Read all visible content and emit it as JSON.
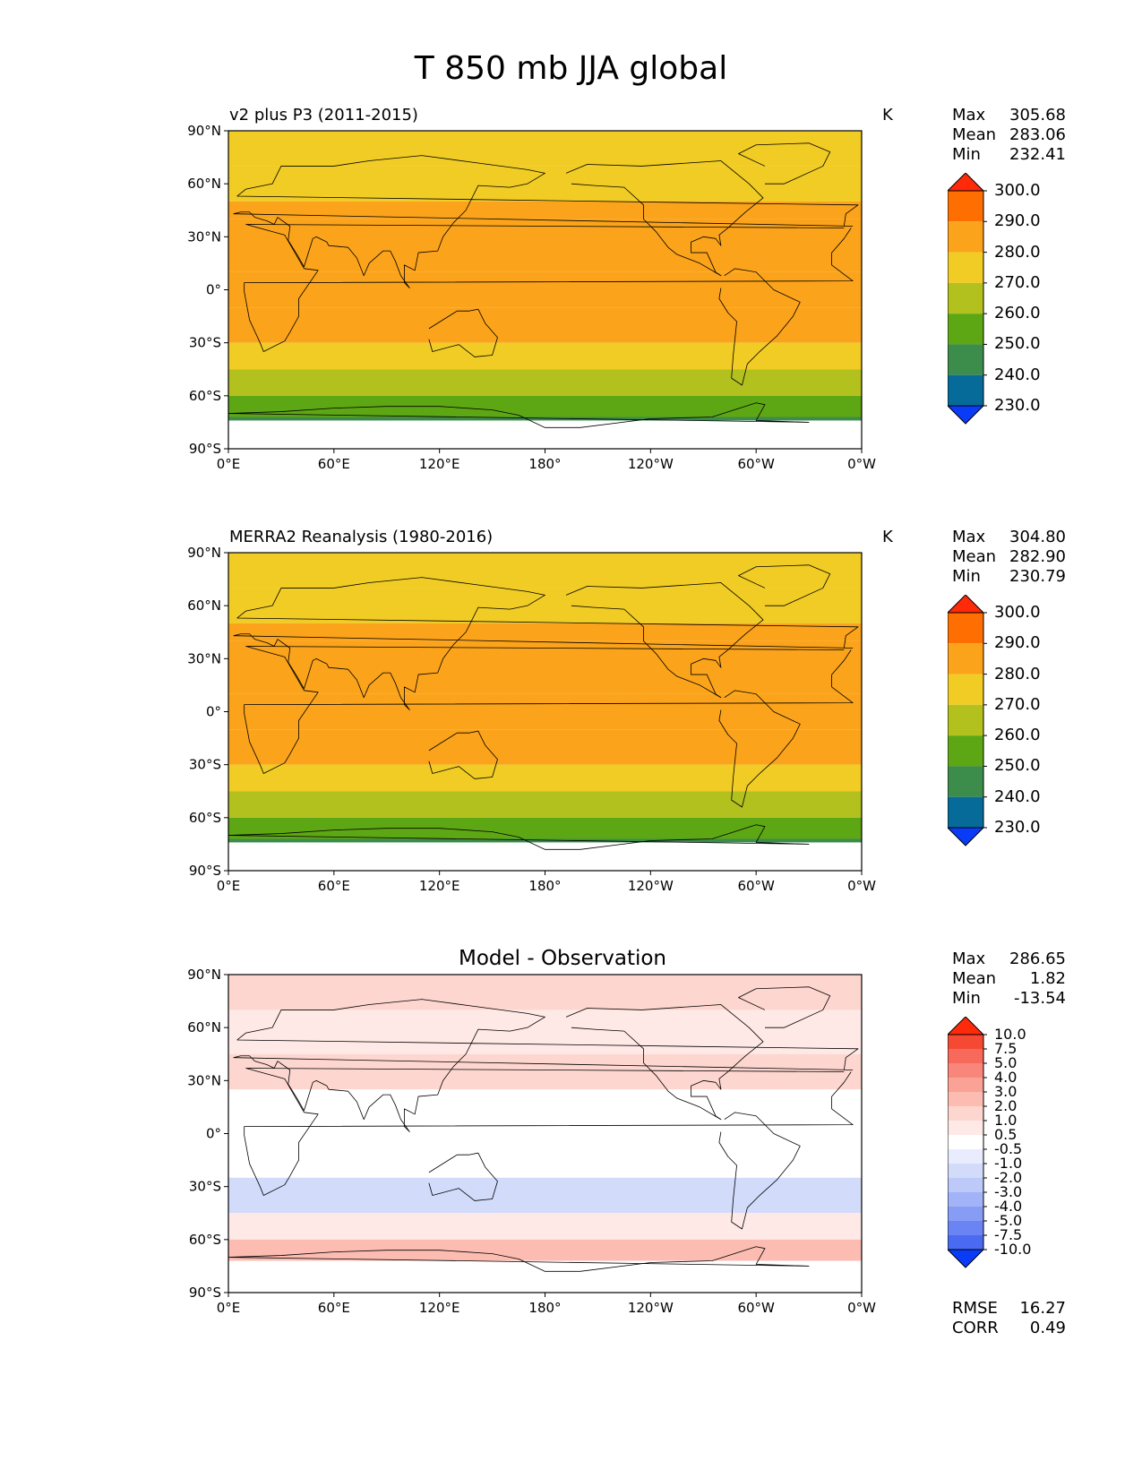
{
  "figure_title": "T 850 mb JJA global",
  "chart_data": [
    {
      "type": "heatmap",
      "title": "v2 plus P3 (2011-2015)",
      "units": "K",
      "stats": {
        "Max": "305.68",
        "Mean": "283.06",
        "Min": "232.41"
      },
      "xlabel": "",
      "ylabel": "",
      "x_ticks": [
        "0°E",
        "60°E",
        "120°E",
        "180°",
        "120°W",
        "60°W",
        "0°W"
      ],
      "y_ticks": [
        "90°N",
        "60°N",
        "30°N",
        "0°",
        "30°S",
        "60°S",
        "90°S"
      ],
      "xlim": [
        0,
        360
      ],
      "ylim": [
        -90,
        90
      ],
      "colorbar": {
        "levels": [
          "300.0",
          "290.0",
          "280.0",
          "270.0",
          "260.0",
          "250.0",
          "240.0",
          "230.0"
        ],
        "colors": [
          "#ff2a0a",
          "#ff6e00",
          "#fba31a",
          "#f1cc25",
          "#b3c11f",
          "#5ea714",
          "#3c8c4c",
          "#076b9a",
          "#0a3cf8"
        ]
      },
      "latitude_bands_K": [
        {
          "lat": [
            70,
            90
          ],
          "value": 270
        },
        {
          "lat": [
            50,
            70
          ],
          "value": 275
        },
        {
          "lat": [
            40,
            50
          ],
          "value": 283
        },
        {
          "lat": [
            10,
            40
          ],
          "value": 288
        },
        {
          "lat": [
            -10,
            10
          ],
          "value": 287
        },
        {
          "lat": [
            -30,
            -10
          ],
          "value": 282
        },
        {
          "lat": [
            -45,
            -30
          ],
          "value": 272
        },
        {
          "lat": [
            -60,
            -45
          ],
          "value": 262
        },
        {
          "lat": [
            -72,
            -60
          ],
          "value": 255
        },
        {
          "lat": [
            -90,
            -72
          ],
          "value": 240
        }
      ]
    },
    {
      "type": "heatmap",
      "title": "MERRA2 Reanalysis (1980-2016)",
      "units": "K",
      "stats": {
        "Max": "304.80",
        "Mean": "282.90",
        "Min": "230.79"
      },
      "xlabel": "",
      "ylabel": "",
      "x_ticks": [
        "0°E",
        "60°E",
        "120°E",
        "180°",
        "120°W",
        "60°W",
        "0°W"
      ],
      "y_ticks": [
        "90°N",
        "60°N",
        "30°N",
        "0°",
        "30°S",
        "60°S",
        "90°S"
      ],
      "xlim": [
        0,
        360
      ],
      "ylim": [
        -90,
        90
      ],
      "colorbar": {
        "levels": [
          "300.0",
          "290.0",
          "280.0",
          "270.0",
          "260.0",
          "250.0",
          "240.0",
          "230.0"
        ],
        "colors": [
          "#ff2a0a",
          "#ff6e00",
          "#fba31a",
          "#f1cc25",
          "#b3c11f",
          "#5ea714",
          "#3c8c4c",
          "#076b9a",
          "#0a3cf8"
        ]
      },
      "latitude_bands_K": [
        {
          "lat": [
            70,
            90
          ],
          "value": 270
        },
        {
          "lat": [
            50,
            70
          ],
          "value": 276
        },
        {
          "lat": [
            40,
            50
          ],
          "value": 283
        },
        {
          "lat": [
            10,
            40
          ],
          "value": 288
        },
        {
          "lat": [
            -10,
            10
          ],
          "value": 287
        },
        {
          "lat": [
            -30,
            -10
          ],
          "value": 282
        },
        {
          "lat": [
            -45,
            -30
          ],
          "value": 272
        },
        {
          "lat": [
            -60,
            -45
          ],
          "value": 262
        },
        {
          "lat": [
            -72,
            -60
          ],
          "value": 255
        },
        {
          "lat": [
            -90,
            -72
          ],
          "value": 240
        }
      ]
    },
    {
      "type": "heatmap",
      "title": "Model - Observation",
      "units": "",
      "stats": {
        "Max": "286.65",
        "Mean": "1.82",
        "Min": "-13.54"
      },
      "metrics": {
        "RMSE": "16.27",
        "CORR": "0.49"
      },
      "xlabel": "",
      "ylabel": "",
      "x_ticks": [
        "0°E",
        "60°E",
        "120°E",
        "180°",
        "120°W",
        "60°W",
        "0°W"
      ],
      "y_ticks": [
        "90°N",
        "60°N",
        "30°N",
        "0°",
        "30°S",
        "60°S",
        "90°S"
      ],
      "xlim": [
        0,
        360
      ],
      "ylim": [
        -90,
        90
      ],
      "colorbar": {
        "levels": [
          "10.0",
          "7.5",
          "5.0",
          "4.0",
          "3.0",
          "2.0",
          "1.0",
          "0.5",
          "-0.5",
          "-1.0",
          "-2.0",
          "-3.0",
          "-4.0",
          "-5.0",
          "-7.5",
          "-10.0"
        ],
        "colors": [
          "#ff2a0a",
          "#f64934",
          "#f7695a",
          "#f9867a",
          "#fba296",
          "#fcbcb2",
          "#fdd6cf",
          "#fee9e6",
          "#ffffff",
          "#e8ecfd",
          "#d3dbfb",
          "#bcc9f9",
          "#a2b3f7",
          "#879df5",
          "#6a85f3",
          "#4a6af1",
          "#0a3cf8"
        ]
      },
      "latitude_bands_K": [
        {
          "lat": [
            70,
            90
          ],
          "value": 1.5
        },
        {
          "lat": [
            45,
            70
          ],
          "value": 0.8
        },
        {
          "lat": [
            25,
            45
          ],
          "value": 1.5
        },
        {
          "lat": [
            -25,
            25
          ],
          "value": 0
        },
        {
          "lat": [
            -45,
            -25
          ],
          "value": -1.5
        },
        {
          "lat": [
            -60,
            -45
          ],
          "value": 0.5
        },
        {
          "lat": [
            -72,
            -60
          ],
          "value": 2.5
        },
        {
          "lat": [
            -90,
            -72
          ],
          "value": 0
        }
      ]
    }
  ]
}
